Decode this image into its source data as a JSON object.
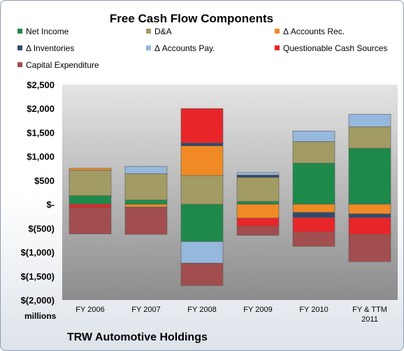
{
  "chart_data": {
    "type": "bar",
    "stacked": true,
    "title": "Free Cash Flow Components",
    "unit_label": "millions",
    "caption": "TRW Automotive Holdings",
    "ylim": [
      -2000,
      2500
    ],
    "yticks": [
      2500,
      2000,
      1500,
      1000,
      500,
      0,
      -500,
      -1000,
      -1500,
      -2000
    ],
    "ytick_labels": [
      "$2,500",
      "$2,000",
      "$1,500",
      "$1,000",
      "$500",
      "$-",
      "$(500)",
      "$(1,000)",
      "$(1,500)",
      "$(2,000)"
    ],
    "categories": [
      "FY 2006",
      "FY 2007",
      "FY 2008",
      "FY 2009",
      "FY 2010",
      "FY & TTM 2011"
    ],
    "legend_position": "top",
    "series": [
      {
        "name": "Net Income",
        "color": "#1e8a4a",
        "values": [
          180,
          90,
          -780,
          60,
          860,
          1170
        ]
      },
      {
        "name": "D&A",
        "color": "#a39b64",
        "values": [
          530,
          550,
          600,
          500,
          450,
          450
        ]
      },
      {
        "name": "Δ Accounts Rec.",
        "color": "#f08a24",
        "values": [
          40,
          -60,
          620,
          -290,
          -170,
          -200
        ]
      },
      {
        "name": "Δ Inventories",
        "color": "#34496b",
        "values": [
          0,
          -10,
          60,
          50,
          -110,
          -80
        ]
      },
      {
        "name": "Δ Accounts Pay.",
        "color": "#96b8dd",
        "values": [
          0,
          150,
          -450,
          50,
          220,
          260
        ]
      },
      {
        "name": "Questionable Cash Sources",
        "color": "#e8262a",
        "values": [
          -70,
          0,
          720,
          -170,
          -300,
          -350
        ]
      },
      {
        "name": "Capital Expenditure",
        "color": "#a24e4e",
        "values": [
          -550,
          -560,
          -470,
          -190,
          -300,
          -570
        ]
      }
    ]
  }
}
